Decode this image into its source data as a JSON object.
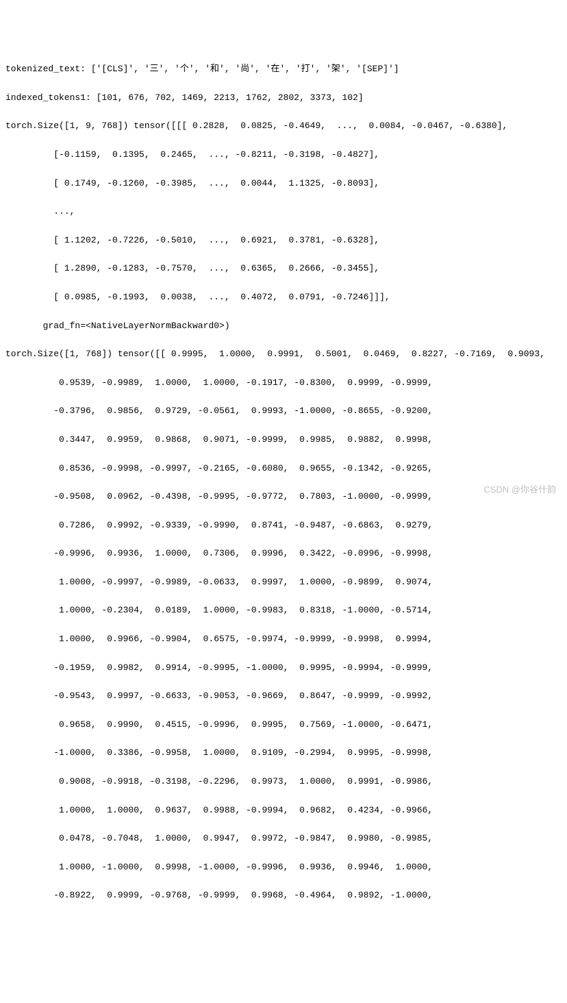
{
  "font_family": "Consolas, Monaco, Courier New, monospace",
  "font_size": 13,
  "line_height": 1.6,
  "background_color": "#ffffff",
  "text_color": "#000000",
  "watermark_color": "#c0c0c0",
  "watermark_text": "CSDN @你谷什韵",
  "lines": {
    "l0": "tokenized_text: ['[CLS]', '三', '个', '和', '尚', '在', '打', '架', '[SEP]']",
    "l1": "indexed_tokens1: [101, 676, 702, 1469, 2213, 1762, 2802, 3373, 102]",
    "l2": "torch.Size([1, 9, 768]) tensor([[[ 0.2828,  0.0825, -0.4649,  ...,  0.0084, -0.0467, -0.6380],",
    "l3": "         [-0.1159,  0.1395,  0.2465,  ..., -0.8211, -0.3198, -0.4827],",
    "l4": "         [ 0.1749, -0.1260, -0.3985,  ...,  0.0044,  1.1325, -0.8093],",
    "l5": "         ...,",
    "l6": "         [ 1.1202, -0.7226, -0.5010,  ...,  0.6921,  0.3781, -0.6328],",
    "l7": "         [ 1.2890, -0.1283, -0.7570,  ...,  0.6365,  0.2666, -0.3455],",
    "l8": "         [ 0.0985, -0.1993,  0.0038,  ...,  0.4072,  0.0791, -0.7246]]],",
    "l9": "       grad_fn=<NativeLayerNormBackward0>)",
    "l10": "torch.Size([1, 768]) tensor([[ 0.9995,  1.0000,  0.9991,  0.5001,  0.0469,  0.8227, -0.7169,  0.9093,",
    "l11": "          0.9539, -0.9989,  1.0000,  1.0000, -0.1917, -0.8300,  0.9999, -0.9999,",
    "l12": "         -0.3796,  0.9856,  0.9729, -0.0561,  0.9993, -1.0000, -0.8655, -0.9200,",
    "l13": "          0.3447,  0.9959,  0.9868,  0.9071, -0.9999,  0.9985,  0.9882,  0.9998,",
    "l14": "          0.8536, -0.9998, -0.9997, -0.2165, -0.6080,  0.9655, -0.1342, -0.9265,",
    "l15": "         -0.9508,  0.0962, -0.4398, -0.9995, -0.9772,  0.7803, -1.0000, -0.9999,",
    "l16": "          0.7286,  0.9992, -0.9339, -0.9990,  0.8741, -0.9487, -0.6863,  0.9279,",
    "l17": "         -0.9996,  0.9936,  1.0000,  0.7306,  0.9996,  0.3422, -0.0996, -0.9998,",
    "l18": "          1.0000, -0.9997, -0.9989, -0.0633,  0.9997,  1.0000, -0.9899,  0.9074,",
    "l19": "          1.0000, -0.2304,  0.0189,  1.0000, -0.9983,  0.8318, -1.0000, -0.5714,",
    "l20": "          1.0000,  0.9966, -0.9904,  0.6575, -0.9974, -0.9999, -0.9998,  0.9994,",
    "l21": "         -0.1959,  0.9982,  0.9914, -0.9995, -1.0000,  0.9995, -0.9994, -0.9999,",
    "l22": "         -0.9543,  0.9997, -0.6633, -0.9053, -0.9669,  0.8647, -0.9999, -0.9992,",
    "l23": "          0.9658,  0.9990,  0.4515, -0.9996,  0.9995,  0.7569, -1.0000, -0.6471,",
    "l24": "         -1.0000,  0.3386, -0.9958,  1.0000,  0.9109, -0.2994,  0.9995, -0.9998,",
    "l25": "          0.9008, -0.9918, -0.3198, -0.2296,  0.9973,  1.0000,  0.9991, -0.9986,",
    "l26": "          1.0000,  1.0000,  0.9637,  0.9988, -0.9994,  0.9682,  0.4234, -0.9966,",
    "l27": "          0.0478, -0.7048,  1.0000,  0.9947,  0.9972, -0.9847,  0.9980, -0.9985,",
    "l28": "          1.0000, -1.0000,  0.9998, -1.0000, -0.9996,  0.9936,  0.9946,  1.0000,",
    "l29": "         -0.8922,  0.9999, -0.9768, -0.9999,  0.9968, -0.4964,  0.9892, -1.0000,"
  }
}
